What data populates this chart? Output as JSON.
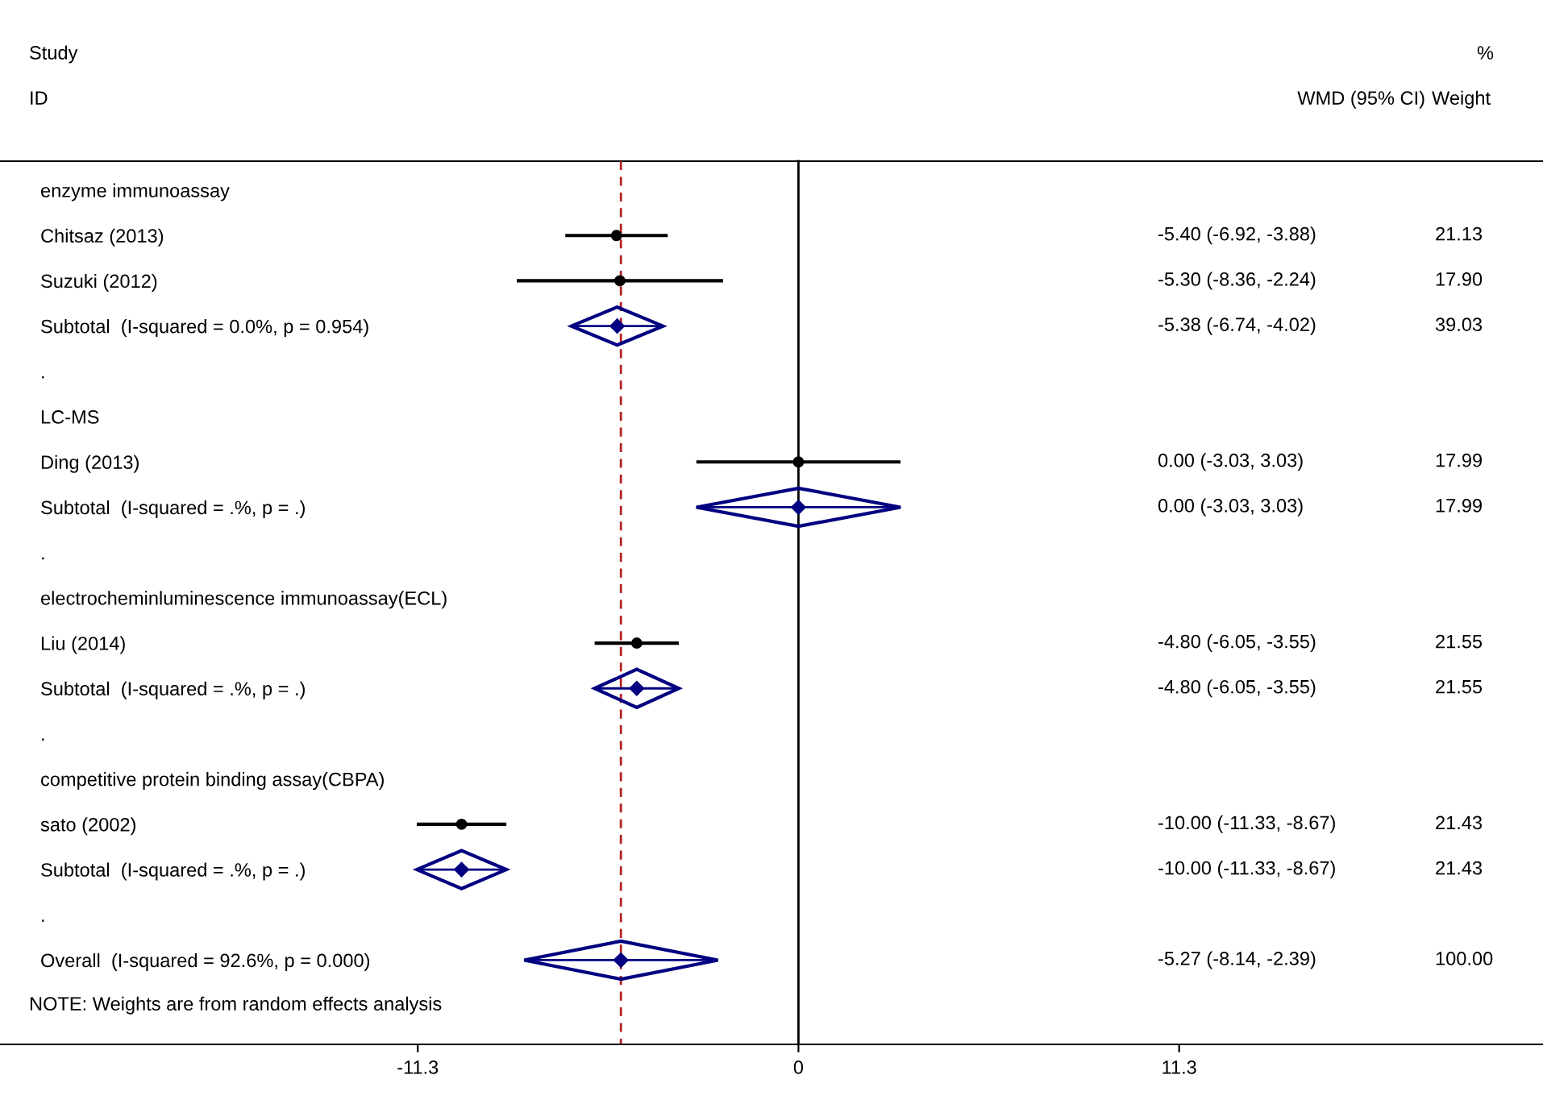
{
  "chart_data": {
    "type": "scatter",
    "categories": [
      "enzyme immunoassay",
      "Chitsaz (2013)",
      "Suzuki (2012)",
      "Subtotal  (I-squared = 0.0%, p = 0.954)",
      ".",
      "LC-MS",
      "Ding (2013)",
      "Subtotal  (I-squared = .%, p = .)",
      ".",
      "electrocheminluminescence immunoassay(ECL)",
      "Liu (2014)",
      "Subtotal  (I-squared = .%, p = .)",
      ".",
      "competitive protein binding assay(CBPA)",
      "sato (2002)",
      "Subtotal  (I-squared = .%, p = .)",
      ".",
      "Overall  (I-squared = 92.6%, p = 0.000)"
    ],
    "xlim": [
      -23.7,
      22.1
    ],
    "xticks": [
      -11.3,
      0,
      11.3
    ],
    "orientation": "horizontal",
    "grid": false,
    "legend": false,
    "series": [
      {
        "type": "scatter",
        "marker": "circle",
        "color": "#000000",
        "values": [
          null,
          -5.4,
          -5.3,
          null,
          null,
          null,
          0.0,
          null,
          null,
          null,
          -4.8,
          null,
          null,
          null,
          -10.0,
          null,
          null,
          null
        ],
        "errors": [
          null,
          [
            -6.92,
            -3.88
          ],
          [
            -8.36,
            -2.24
          ],
          null,
          null,
          null,
          [
            -3.03,
            3.03
          ],
          null,
          null,
          null,
          [
            -6.05,
            -3.55
          ],
          null,
          null,
          null,
          [
            -11.33,
            -8.67
          ],
          null,
          null,
          null
        ],
        "value_labels": [
          null,
          "-5.40 (-6.92, -3.88)\t21.13",
          "-5.30 (-8.36, -2.24)\t17.90",
          null,
          null,
          null,
          "0.00 (-3.03, 3.03)\t17.99",
          null,
          null,
          null,
          "-4.80 (-6.05, -3.55)\t21.55",
          null,
          null,
          null,
          "-10.00 (-11.33, -8.67)\t21.43",
          null,
          null,
          null
        ]
      },
      {
        "type": "scatter",
        "marker": "diamond",
        "color": "#000080",
        "values": [
          null,
          null,
          null,
          -5.38,
          null,
          null,
          null,
          0.0,
          null,
          null,
          null,
          -4.8,
          null,
          null,
          null,
          -10.0,
          null,
          -5.27
        ],
        "errors": [
          null,
          null,
          null,
          [
            -6.74,
            -4.02
          ],
          null,
          null,
          null,
          [
            -3.03,
            3.03
          ],
          null,
          null,
          null,
          [
            -6.05,
            -3.55
          ],
          null,
          null,
          null,
          [
            -11.33,
            -8.67
          ],
          null,
          [
            -8.14,
            -2.39
          ]
        ],
        "value_labels": [
          null,
          null,
          null,
          "-5.38 (-6.74, -4.02)\t39.03",
          null,
          null,
          null,
          "0.00 (-3.03, 3.03)\t17.99",
          null,
          null,
          null,
          "-4.80 (-6.05, -3.55)\t21.55",
          null,
          null,
          null,
          "-10.00 (-11.33, -8.67)\t21.43",
          null,
          "-5.27 (-8.14, -2.39)\t100.00"
        ]
      }
    ],
    "ref_lines": [
      {
        "axis": "x",
        "value": 0,
        "color": "#000000",
        "line_style": "solid"
      },
      {
        "axis": "x",
        "value": -5.27,
        "color": "#b22222",
        "line_style": "dashed"
      }
    ],
    "annotations": [
      "Study",
      "ID",
      "WMD (95% CI)",
      "%",
      "Weight",
      "NOTE: Weights are from random effects analysis"
    ]
  }
}
